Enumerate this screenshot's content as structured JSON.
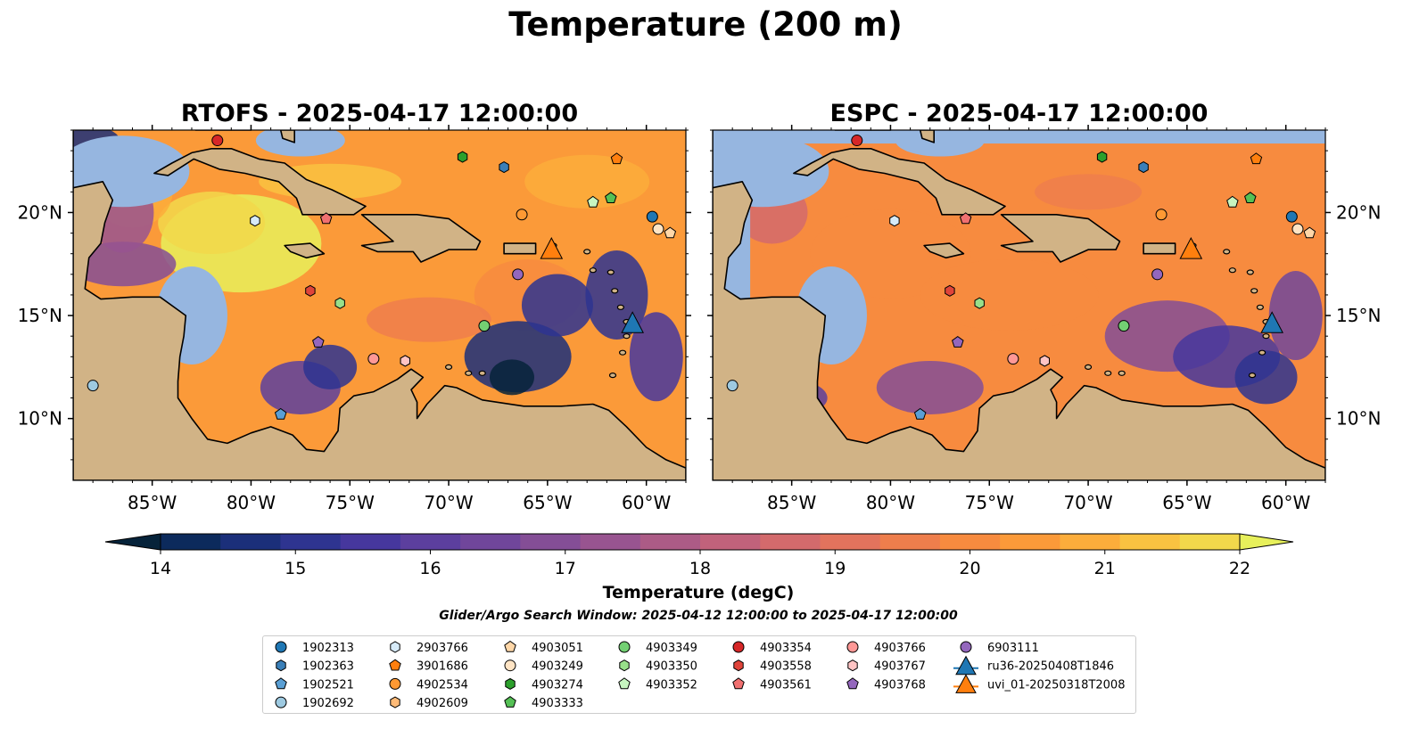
{
  "title": "Temperature (200 m)",
  "panels": [
    {
      "title": "RTOFS - 2025-04-17 12:00:00"
    },
    {
      "title": "ESPC - 2025-04-17 12:00:00"
    }
  ],
  "colors": {
    "land": "#d1b386",
    "shallow": "#96b6e0",
    "coast": "#000000",
    "colormap": [
      "#06233a",
      "#0c2a5c",
      "#1b2f7a",
      "#2e3490",
      "#46379d",
      "#5c3f9e",
      "#70469b",
      "#844e96",
      "#985490",
      "#ac5b86",
      "#c1627b",
      "#d36a6c",
      "#e2735d",
      "#ee7e4c",
      "#f78b3f",
      "#fb9a39",
      "#fcad3b",
      "#f9c241",
      "#f2d84b",
      "#e7f05b"
    ]
  },
  "chart_data": [
    {
      "type": "heatmap",
      "title": "RTOFS - 2025-04-17 12:00:00",
      "xticks": [
        "85°W",
        "80°W",
        "75°W",
        "70°W",
        "65°W",
        "60°W"
      ],
      "xtick_values": [
        -85,
        -80,
        -75,
        -70,
        -65,
        -60
      ],
      "yticks": [
        "20°N",
        "15°N",
        "10°N"
      ],
      "ytick_values": [
        20,
        15,
        10
      ],
      "xlim": [
        -89,
        -58
      ],
      "ylim": [
        7,
        24
      ]
    },
    {
      "type": "heatmap",
      "title": "ESPC - 2025-04-17 12:00:00",
      "xticks": [
        "85°W",
        "80°W",
        "75°W",
        "70°W",
        "65°W",
        "60°W"
      ],
      "xtick_values": [
        -85,
        -80,
        -75,
        -70,
        -65,
        -60
      ],
      "yticks": [
        "20°N",
        "15°N",
        "10°N"
      ],
      "ytick_values": [
        20,
        15,
        10
      ],
      "xlim": [
        -89,
        -58
      ],
      "ylim": [
        7,
        24
      ]
    }
  ],
  "colorbar": {
    "label": "Temperature (degC)",
    "ticks": [
      "14",
      "15",
      "16",
      "17",
      "18",
      "19",
      "20",
      "21",
      "22"
    ],
    "tick_values": [
      14,
      15,
      16,
      17,
      18,
      19,
      20,
      21,
      22
    ],
    "range": [
      13.6,
      22.0
    ]
  },
  "search_window": "Glider/Argo Search Window: 2025-04-12 12:00:00 to 2025-04-17 12:00:00",
  "markers": [
    {
      "id": "1902313",
      "shape": "circle",
      "color": "#1f77b4",
      "lon": -59.7,
      "lat": 19.8
    },
    {
      "id": "1902363",
      "shape": "hexagon",
      "color": "#3a7fb8",
      "lon": -67.2,
      "lat": 22.2
    },
    {
      "id": "1902521",
      "shape": "pentagon",
      "color": "#5a9fd4",
      "lon": -78.5,
      "lat": 10.2
    },
    {
      "id": "1902692",
      "shape": "circle",
      "color": "#9ecae1",
      "lon": -88.0,
      "lat": 11.6
    },
    {
      "id": "2903766",
      "shape": "hexagon",
      "color": "#d6eaf8",
      "lon": -79.8,
      "lat": 19.6
    },
    {
      "id": "3901686",
      "shape": "pentagon",
      "color": "#ff7f0e",
      "lon": -61.5,
      "lat": 22.6
    },
    {
      "id": "4902534",
      "shape": "circle",
      "color": "#ff9933",
      "lon": -66.3,
      "lat": 19.9
    },
    {
      "id": "4902609",
      "shape": "hexagon",
      "color": "#ffbb78",
      "lon": -72.2,
      "lat": 12.8
    },
    {
      "id": "4903051",
      "shape": "pentagon",
      "color": "#ffd7a8",
      "lon": -58.8,
      "lat": 19.0
    },
    {
      "id": "4903249",
      "shape": "circle",
      "color": "#ffe4c4",
      "lon": -59.4,
      "lat": 19.2
    },
    {
      "id": "4903274",
      "shape": "hexagon",
      "color": "#2ca02c",
      "lon": -69.3,
      "lat": 22.7
    },
    {
      "id": "4903333",
      "shape": "pentagon",
      "color": "#55c055",
      "lon": -61.8,
      "lat": 20.7
    },
    {
      "id": "4903349",
      "shape": "circle",
      "color": "#73d073",
      "lon": -68.2,
      "lat": 14.5
    },
    {
      "id": "4903350",
      "shape": "hexagon",
      "color": "#98df8a",
      "lon": -75.5,
      "lat": 15.6
    },
    {
      "id": "4903352",
      "shape": "pentagon",
      "color": "#c7f5c0",
      "lon": -62.7,
      "lat": 20.5
    },
    {
      "id": "4903354",
      "shape": "circle",
      "color": "#d62728",
      "lon": -81.7,
      "lat": 23.5
    },
    {
      "id": "4903558",
      "shape": "hexagon",
      "color": "#e0443a",
      "lon": -77.0,
      "lat": 16.2
    },
    {
      "id": "4903561",
      "shape": "pentagon",
      "color": "#f07070",
      "lon": -76.2,
      "lat": 19.7
    },
    {
      "id": "4903766",
      "shape": "circle",
      "color": "#ff9896",
      "lon": -73.8,
      "lat": 12.9
    },
    {
      "id": "4903767",
      "shape": "hexagon",
      "color": "#ffc4c4",
      "lon": -72.2,
      "lat": 12.8
    },
    {
      "id": "4903768",
      "shape": "pentagon",
      "color": "#9467bd",
      "lon": -76.6,
      "lat": 13.7
    },
    {
      "id": "6903111",
      "shape": "circle",
      "color": "#9467bd",
      "lon": -66.5,
      "lat": 17.0
    },
    {
      "id": "ru36-20250408T1846",
      "shape": "triangle",
      "color": "#1f77b4",
      "lon": -60.7,
      "lat": 14.6
    },
    {
      "id": "uvi_01-20250318T2008",
      "shape": "triangle",
      "color": "#ff7f0e",
      "lon": -64.8,
      "lat": 18.2
    }
  ],
  "legend": [
    [
      "1902313",
      "1902363",
      "1902521",
      "1902692"
    ],
    [
      "2903766",
      "3901686",
      "4902534",
      "4902609"
    ],
    [
      "4903051",
      "4903249",
      "4903274",
      "4903333"
    ],
    [
      "4903349",
      "4903350",
      "4903352"
    ],
    [
      "4903354",
      "4903558",
      "4903561"
    ],
    [
      "4903766",
      "4903767",
      "4903768"
    ],
    [
      "6903111",
      "ru36-20250408T1846",
      "uvi_01-20250318T2008"
    ]
  ]
}
